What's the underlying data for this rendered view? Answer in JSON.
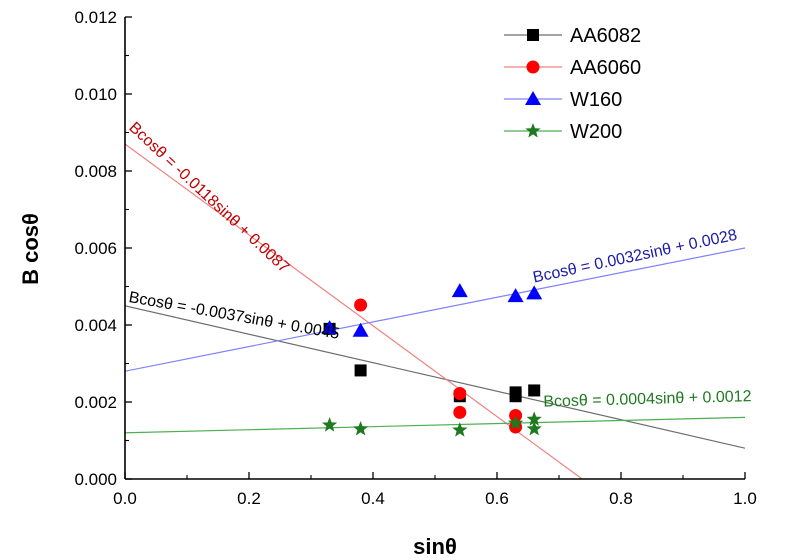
{
  "chart_data": {
    "type": "scatter",
    "title": "",
    "xlabel": "sinθ",
    "ylabel": "B cosθ",
    "xlim": [
      0.0,
      1.0
    ],
    "ylim": [
      0.0,
      0.012
    ],
    "grid": false,
    "legend_position": "top-right",
    "x_ticks": [
      "0.0",
      "0.2",
      "0.4",
      "0.6",
      "0.8",
      "1.0"
    ],
    "y_ticks": [
      "0.000",
      "0.002",
      "0.004",
      "0.006",
      "0.008",
      "0.010",
      "0.012"
    ],
    "series": [
      {
        "name": "AA6082",
        "marker": "square",
        "color": "#000000",
        "points": [
          [
            0.33,
            0.0039
          ],
          [
            0.38,
            0.00282
          ],
          [
            0.54,
            0.00215
          ],
          [
            0.63,
            0.00225
          ],
          [
            0.63,
            0.00215
          ],
          [
            0.66,
            0.0023
          ]
        ],
        "fit": {
          "slope": -0.0037,
          "intercept": 0.0045,
          "x_range": [
            0.0,
            1.0
          ],
          "equation": "Bcosθ = -0.0037sinθ + 0.0045",
          "line_color": "#6e6e6e"
        }
      },
      {
        "name": "AA6060",
        "marker": "circle",
        "color": "#ff0000",
        "points": [
          [
            0.38,
            0.00452
          ],
          [
            0.54,
            0.00222
          ],
          [
            0.54,
            0.00173
          ],
          [
            0.63,
            0.00165
          ],
          [
            0.63,
            0.00135
          ]
        ],
        "fit": {
          "slope": -0.0118,
          "intercept": 0.0087,
          "x_range": [
            0.0,
            0.737
          ],
          "equation": "Bcosθ = -0.0118sinθ + 0.0087",
          "line_color": "#f08080"
        }
      },
      {
        "name": "W160",
        "marker": "triangle",
        "color": "#0000ff",
        "points": [
          [
            0.33,
            0.00392
          ],
          [
            0.38,
            0.00385
          ],
          [
            0.54,
            0.00488
          ],
          [
            0.63,
            0.00475
          ],
          [
            0.66,
            0.00482
          ]
        ],
        "fit": {
          "slope": 0.0032,
          "intercept": 0.0028,
          "x_range": [
            0.0,
            1.0
          ],
          "equation": "Bcosθ = 0.0032sinθ + 0.0028",
          "line_color": "#8080ff"
        }
      },
      {
        "name": "W200",
        "marker": "star",
        "color": "#1f7a1f",
        "points": [
          [
            0.33,
            0.0014
          ],
          [
            0.38,
            0.0013
          ],
          [
            0.54,
            0.00127
          ],
          [
            0.63,
            0.00145
          ],
          [
            0.66,
            0.00155
          ],
          [
            0.66,
            0.0013
          ]
        ],
        "fit": {
          "slope": 0.0004,
          "intercept": 0.0012,
          "x_range": [
            0.0,
            1.0
          ],
          "equation": "Bcosθ = 0.0004sinθ + 0.0012",
          "line_color": "#4caf50"
        }
      }
    ],
    "annotations": [
      {
        "series": "AA6060",
        "text": "Bcosθ = -0.0118sinθ + 0.0087",
        "color": "#c00000",
        "at_x": 0.005,
        "at_y": 0.0091,
        "angle_deg": 43
      },
      {
        "series": "W160",
        "text": "Bcosθ = 0.0032sinθ + 0.0028",
        "color": "#1a1aa6",
        "at_x": 0.66,
        "at_y": 0.0051,
        "angle_deg": -12
      },
      {
        "series": "AA6082",
        "text": "Bcosθ = -0.0037sinθ + 0.0045",
        "color": "#000000",
        "at_x": 0.005,
        "at_y": 0.0046,
        "angle_deg": 10
      },
      {
        "series": "W200",
        "text": "Bcosθ = 0.0004sinθ + 0.0012",
        "color": "#1f7a1f",
        "at_x": 0.675,
        "at_y": 0.00188,
        "angle_deg": -1.5
      }
    ]
  }
}
